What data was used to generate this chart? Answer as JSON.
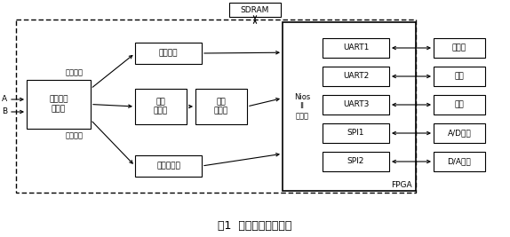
{
  "title": "图1  系统功能原理框图",
  "bg_color": "#ffffff",
  "fpga_label": "FPGA",
  "sdram_label": "SDRAM",
  "jump_label": "跳变检测\n及鉴相",
  "direction_label": "方向信号",
  "count_pulse_label": "计数脉冲",
  "dither_calc_label": "抖频计算",
  "reversible_label": "可逆\n计数器",
  "lowpass_label": "低通\n滤波器",
  "sum_freq_label": "和频计数器",
  "nios_label": "Nios\nII\n处理器",
  "uart1_label": "UART1",
  "uart2_label": "UART2",
  "uart3_label": "UART3",
  "spi1_label": "SPI1",
  "spi2_label": "SPI2",
  "upper_label": "上位机",
  "stable_label": "稳频",
  "dither_label": "抖动",
  "ad_label": "A/D转换",
  "da_label": "D/A转换",
  "a_label": "A",
  "b_label": "B"
}
